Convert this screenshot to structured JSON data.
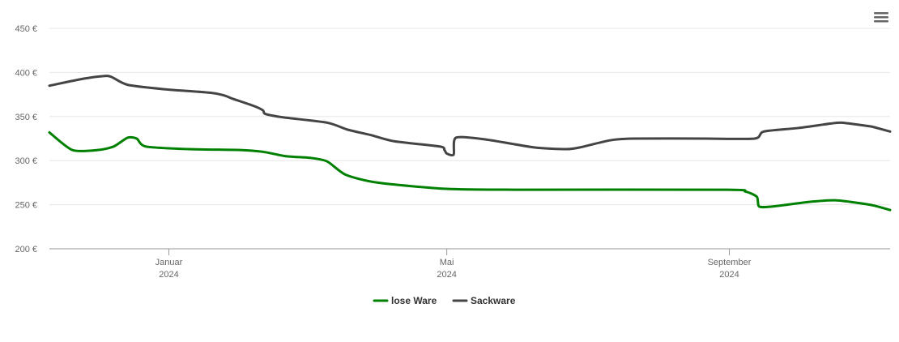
{
  "chart_data": {
    "type": "line",
    "title": "",
    "xlabel": "",
    "ylabel": "",
    "ylim": [
      200,
      450
    ],
    "y_ticks": [
      200,
      250,
      300,
      350,
      400,
      450
    ],
    "y_unit": "€",
    "xlim": [
      "2023-11-10",
      "2024-11-10"
    ],
    "x_ticks": [
      {
        "date": "2024-01-01",
        "label": "Januar",
        "year": "2024"
      },
      {
        "date": "2024-05-01",
        "label": "Mai",
        "year": "2024"
      },
      {
        "date": "2024-09-01",
        "label": "September",
        "year": "2024"
      }
    ],
    "grid": true,
    "legend_position": "bottom",
    "series": [
      {
        "name": "lose Ware",
        "color": "#008000",
        "points": [
          [
            "2023-11-10",
            332
          ],
          [
            "2023-11-20",
            312
          ],
          [
            "2023-12-01",
            312
          ],
          [
            "2023-12-08",
            316
          ],
          [
            "2023-12-14",
            326
          ],
          [
            "2023-12-18",
            325
          ],
          [
            "2023-12-22",
            316
          ],
          [
            "2024-01-10",
            313
          ],
          [
            "2024-02-01",
            312
          ],
          [
            "2024-02-11",
            310
          ],
          [
            "2024-02-21",
            305
          ],
          [
            "2024-03-03",
            303
          ],
          [
            "2024-03-10",
            299
          ],
          [
            "2024-03-18",
            284
          ],
          [
            "2024-04-01",
            275
          ],
          [
            "2024-05-01",
            268
          ],
          [
            "2024-06-01",
            267
          ],
          [
            "2024-08-31",
            267
          ],
          [
            "2024-09-08",
            265
          ],
          [
            "2024-09-13",
            259
          ],
          [
            "2024-09-14",
            248
          ],
          [
            "2024-09-20",
            248
          ],
          [
            "2024-10-05",
            253
          ],
          [
            "2024-10-17",
            255
          ],
          [
            "2024-10-27",
            252
          ],
          [
            "2024-11-03",
            249
          ],
          [
            "2024-11-10",
            244
          ]
        ]
      },
      {
        "name": "Sackware",
        "color": "#444444",
        "points": [
          [
            "2023-11-10",
            385
          ],
          [
            "2023-11-25",
            393
          ],
          [
            "2023-12-04",
            396
          ],
          [
            "2023-12-07",
            395
          ],
          [
            "2023-12-14",
            386
          ],
          [
            "2023-12-30",
            381
          ],
          [
            "2024-01-19",
            377
          ],
          [
            "2024-01-25",
            374
          ],
          [
            "2024-01-29",
            370
          ],
          [
            "2024-02-07",
            362
          ],
          [
            "2024-02-11",
            357
          ],
          [
            "2024-02-12",
            353
          ],
          [
            "2024-02-20",
            349
          ],
          [
            "2024-03-10",
            343
          ],
          [
            "2024-03-19",
            335
          ],
          [
            "2024-03-29",
            329
          ],
          [
            "2024-04-08",
            322
          ],
          [
            "2024-04-28",
            316
          ],
          [
            "2024-04-30",
            312
          ],
          [
            "2024-05-01",
            308
          ],
          [
            "2024-05-04",
            307
          ],
          [
            "2024-05-05",
            326
          ],
          [
            "2024-05-18",
            324
          ],
          [
            "2024-06-08",
            315
          ],
          [
            "2024-06-22",
            313
          ],
          [
            "2024-06-28",
            315
          ],
          [
            "2024-07-11",
            323
          ],
          [
            "2024-07-21",
            325
          ],
          [
            "2024-08-21",
            325
          ],
          [
            "2024-09-12",
            325
          ],
          [
            "2024-09-16",
            333
          ],
          [
            "2024-10-01",
            337
          ],
          [
            "2024-10-15",
            342
          ],
          [
            "2024-10-20",
            343
          ],
          [
            "2024-11-01",
            339
          ],
          [
            "2024-11-03",
            338
          ],
          [
            "2024-11-10",
            333
          ]
        ]
      }
    ]
  }
}
